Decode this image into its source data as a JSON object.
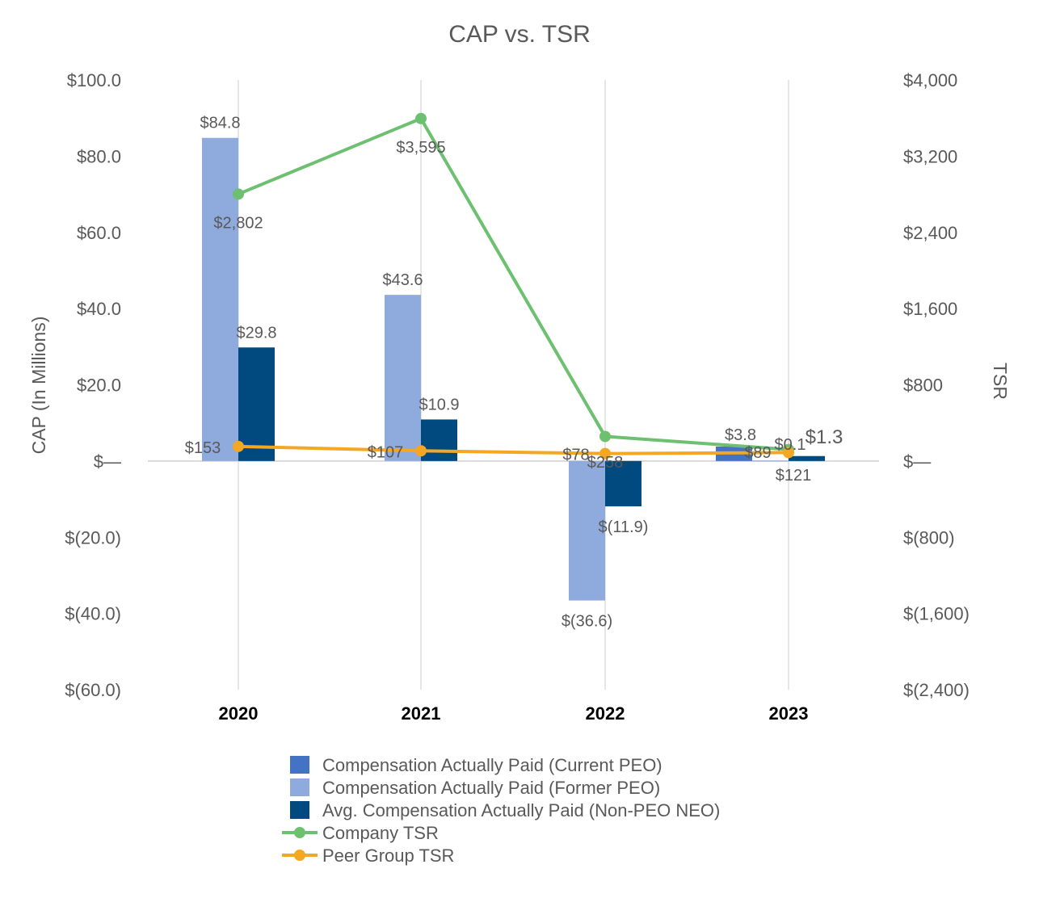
{
  "chart_data": {
    "type": "bar",
    "title": "CAP vs. TSR",
    "categories": [
      "2020",
      "2021",
      "2022",
      "2023"
    ],
    "ylabel": "CAP (In Millions)",
    "y2label": "TSR",
    "ylim": [
      -60,
      100
    ],
    "y2lim": [
      -2400,
      4000
    ],
    "y_ticks": [
      "$100.0",
      "$80.0",
      "$60.0",
      "$40.0",
      "$20.0",
      "$—",
      "$(20.0)",
      "$(40.0)",
      "$(60.0)"
    ],
    "y2_ticks": [
      "$4,000",
      "$3,200",
      "$2,400",
      "$1,600",
      "$800",
      "$—",
      "$(800)",
      "$(1,600)",
      "$(2,400)"
    ],
    "grid": "vertical",
    "legend_position": "bottom",
    "series": [
      {
        "name": "Compensation Actually Paid (Current PEO)",
        "kind": "bar",
        "axis": "left",
        "color": "#4472C4",
        "values": [
          null,
          null,
          null,
          3.8
        ],
        "labels": [
          "",
          "",
          "",
          "$3.8"
        ]
      },
      {
        "name": "Compensation Actually Paid (Former PEO)",
        "kind": "bar",
        "axis": "left",
        "color": "#8FAADC",
        "values": [
          84.8,
          43.6,
          -36.6,
          0.1
        ],
        "labels": [
          "$84.8",
          "$43.6",
          "$(36.6)",
          "$0.1"
        ]
      },
      {
        "name": "Avg. Compensation Actually Paid (Non-PEO NEO)",
        "kind": "bar",
        "axis": "left",
        "color": "#004A7F",
        "values": [
          29.8,
          10.9,
          -11.9,
          1.3
        ],
        "labels": [
          "$29.8",
          "$10.9",
          "$(11.9)",
          "$1.3"
        ]
      },
      {
        "name": "Company TSR",
        "kind": "line",
        "axis": "right",
        "color": "#6CC070",
        "values": [
          2802,
          3595,
          258,
          121
        ],
        "labels": [
          "$2,802",
          "$3,595",
          "$258",
          "$121"
        ]
      },
      {
        "name": "Peer Group TSR",
        "kind": "line",
        "axis": "right",
        "color": "#F5A623",
        "values": [
          153,
          107,
          78,
          89
        ],
        "labels": [
          "$153",
          "$107",
          "$78",
          "$89"
        ]
      }
    ]
  }
}
